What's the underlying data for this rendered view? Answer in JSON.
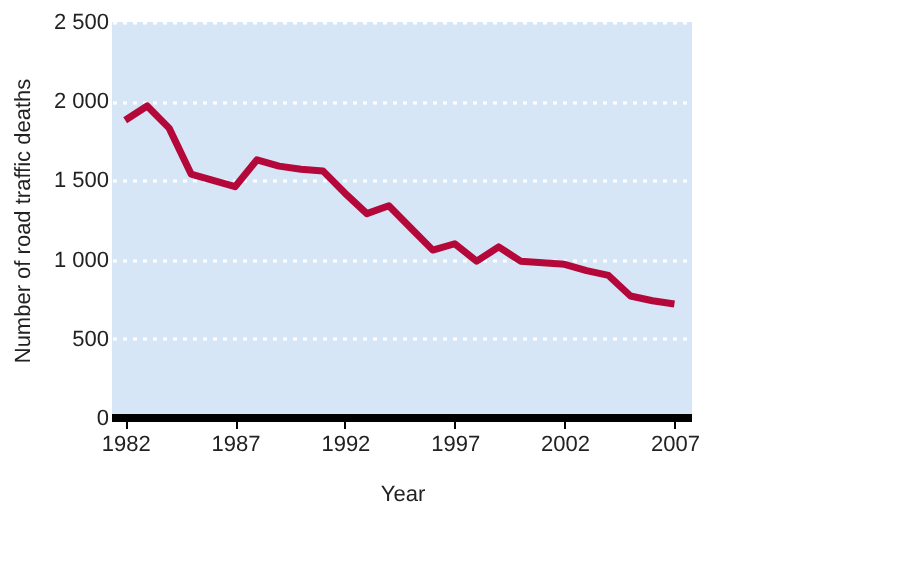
{
  "chart_data": {
    "type": "line",
    "xlabel": "Year",
    "ylabel": "Number of road traffic deaths",
    "x": [
      1982,
      1983,
      1984,
      1985,
      1986,
      1987,
      1988,
      1989,
      1990,
      1991,
      1992,
      1993,
      1994,
      1995,
      1996,
      1997,
      1998,
      1999,
      2000,
      2001,
      2002,
      2003,
      2004,
      2005,
      2006,
      2007
    ],
    "series": [
      {
        "color": "#b5083a",
        "values": [
          1880,
          1970,
          1830,
          1540,
          1500,
          1460,
          1630,
          1590,
          1570,
          1560,
          1420,
          1290,
          1340,
          1200,
          1060,
          1100,
          990,
          1080,
          990,
          980,
          970,
          930,
          900,
          770,
          740,
          720
        ]
      }
    ],
    "xlim": [
      1981.4,
      2007.8
    ],
    "xticks": [
      1982,
      1987,
      1992,
      1997,
      2002,
      2007
    ],
    "ylim": [
      0,
      2500
    ],
    "yticks": [
      0,
      {
        "value": 500,
        "label": "500"
      },
      {
        "value": 1000,
        "label": "1 000"
      },
      {
        "value": 1500,
        "label": "1 500"
      },
      {
        "value": 2000,
        "label": "2 000"
      },
      {
        "value": 2500,
        "label": "2 500"
      }
    ],
    "grid": "y",
    "line_style": "solid",
    "marker": "none"
  }
}
